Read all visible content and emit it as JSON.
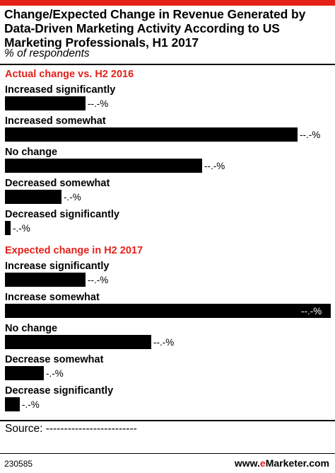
{
  "title": "Change/Expected Change in Revenue Generated by Data-Driven Marketing Activity According to US Marketing Professionals, H1 2017",
  "subtitle": "% of respondents",
  "source": "Source: -------------------------",
  "footer_id": "230585",
  "brand": {
    "prefix": "www.",
    "mark": "e",
    "name": "Marketer",
    "suffix": ".com"
  },
  "colors": {
    "accent": "#e32119",
    "bar": "#000000"
  },
  "chart_data": {
    "type": "bar",
    "orientation": "horizontal",
    "value_label_text": "--.-%",
    "value_label_text_short": "-.-%",
    "groups": [
      {
        "name": "Actual change vs. H2 2016",
        "categories": [
          "Increased significantly",
          "Increased somewhat",
          "No change",
          "Decreased somewhat",
          "Decreased significantly"
        ],
        "values": [
          27,
          98,
          66,
          19,
          2
        ]
      },
      {
        "name": "Expected change in H2 2017",
        "categories": [
          "Increase significantly",
          "Increase somewhat",
          "No change",
          "Decrease somewhat",
          "Decrease significantly"
        ],
        "values": [
          27,
          109,
          49,
          13,
          5
        ]
      }
    ],
    "xlim": [
      0,
      109
    ],
    "grid": false,
    "legend": "none"
  }
}
